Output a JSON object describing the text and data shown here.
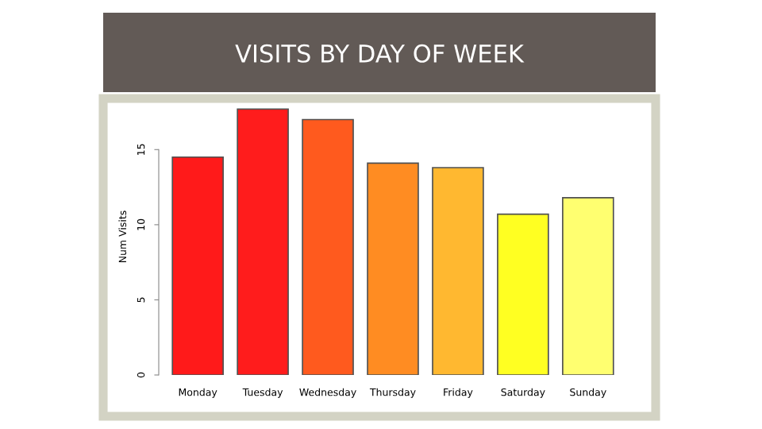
{
  "chart_data": {
    "type": "bar",
    "title": "VISITS BY DAY OF WEEK",
    "ylabel": "Num Visits",
    "categories": [
      "Monday",
      "Tuesday",
      "Wednesday",
      "Thursday",
      "Friday",
      "Saturday",
      "Sunday"
    ],
    "values": [
      14.5,
      17.7,
      17.0,
      14.1,
      13.8,
      10.7,
      11.8
    ],
    "colors": [
      "#ff1a1a",
      "#ff1c1c",
      "#ff5a1e",
      "#ff8c22",
      "#ffb830",
      "#ffff22",
      "#ffff70"
    ],
    "ylim": [
      0,
      18.4
    ],
    "yticks": [
      0,
      5,
      10,
      15
    ],
    "grid": false
  }
}
